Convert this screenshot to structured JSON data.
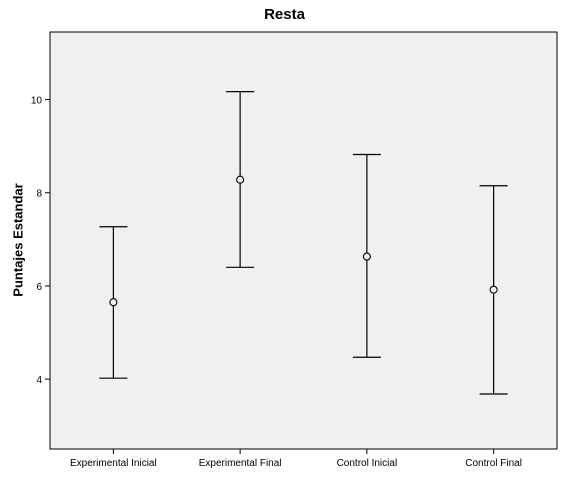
{
  "chart_data": {
    "type": "errorbar",
    "title": "Resta",
    "xlabel": "",
    "ylabel": "Puntajes Estandar",
    "categories": [
      "Experimental Inicial",
      "Experimental Final",
      "Control Inicial",
      "Control Final"
    ],
    "mean": [
      5.65,
      8.28,
      6.63,
      5.92
    ],
    "lower": [
      4.02,
      6.4,
      4.47,
      3.68
    ],
    "upper": [
      7.27,
      10.17,
      8.82,
      8.15
    ],
    "ylim": [
      2.5,
      11.45
    ],
    "yticks": [
      4,
      6,
      8,
      10
    ],
    "grid": false,
    "colors": {
      "plot_background": "#f0f0f0",
      "frame": "#000000",
      "marks": "#000000"
    }
  }
}
